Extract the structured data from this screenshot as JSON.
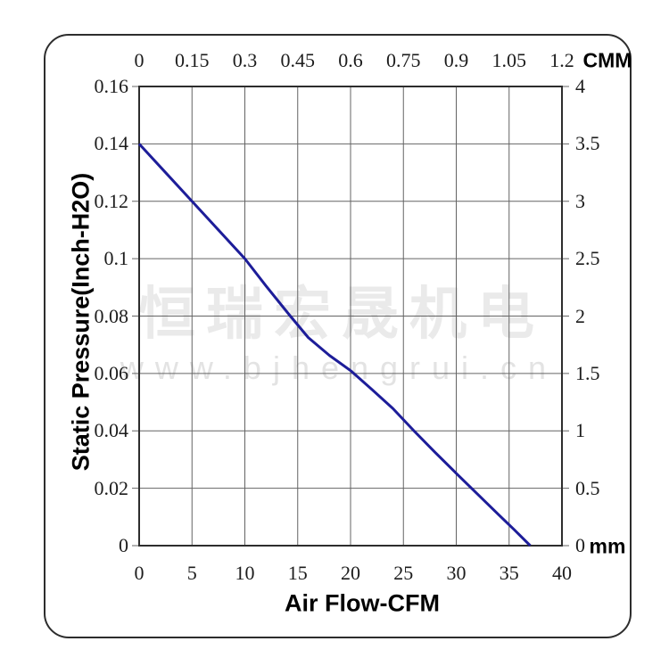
{
  "figure": {
    "background": "#ffffff",
    "border_color": "#2d2d2d"
  },
  "watermark": {
    "cjk_text": "恒瑞宏晟机电",
    "url_text": "www.bjhengrui.cn",
    "cjk_color": "#eaeaea",
    "url_color": "#e3e3e3"
  },
  "chart_data": {
    "type": "line",
    "title": "",
    "grid": true,
    "grid_color": "#646464",
    "frame_color": "#2d2d2d",
    "axes": {
      "bottom": {
        "label": "Air Flow-CFM",
        "tick_labels": [
          "0",
          "5",
          "10",
          "15",
          "20",
          "25",
          "30",
          "35",
          "40"
        ],
        "range": [
          0,
          40
        ]
      },
      "top": {
        "label": "CMM",
        "tick_labels": [
          "0",
          "0.15",
          "0.3",
          "0.45",
          "0.6",
          "0.75",
          "0.9",
          "1.05",
          "1.2"
        ],
        "range": [
          0,
          1.2
        ]
      },
      "left": {
        "label": "Static Pressure(Inch-H2O)",
        "tick_labels": [
          "0.16",
          "0.14",
          "0.12",
          "0.1",
          "0.08",
          "0.06",
          "0.04",
          "0.02",
          "0"
        ],
        "range": [
          0,
          0.16
        ]
      },
      "right": {
        "label": "mm",
        "tick_labels": [
          "4",
          "3.5",
          "3",
          "2.5",
          "2",
          "1.5",
          "1",
          "0.5",
          "0"
        ],
        "range": [
          0,
          4
        ]
      }
    },
    "series": [
      {
        "name": "static-pressure-vs-airflow",
        "color": "#1d1d99",
        "x_unit": "CFM",
        "y_unit": "Inch-H2O",
        "points": [
          [
            0,
            0.14
          ],
          [
            2.5,
            0.13
          ],
          [
            5,
            0.12
          ],
          [
            7.5,
            0.11
          ],
          [
            10,
            0.1
          ],
          [
            12,
            0.0905
          ],
          [
            14.3,
            0.08
          ],
          [
            16,
            0.0725
          ],
          [
            18,
            0.0663
          ],
          [
            20,
            0.061
          ],
          [
            22,
            0.0545
          ],
          [
            24,
            0.0478
          ],
          [
            26,
            0.04
          ],
          [
            28,
            0.0325
          ],
          [
            30,
            0.0252
          ],
          [
            32,
            0.018
          ],
          [
            34,
            0.0108
          ],
          [
            35.5,
            0.0055
          ],
          [
            37,
            0.0
          ]
        ]
      }
    ]
  }
}
